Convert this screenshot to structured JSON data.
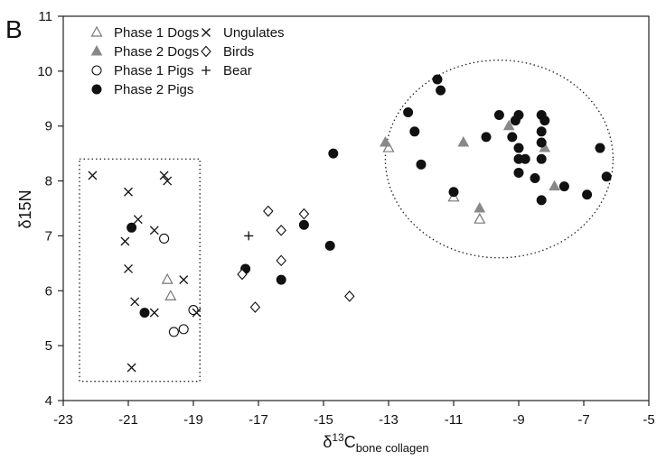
{
  "chart_data": {
    "type": "scatter",
    "panel_label": "B",
    "title": "",
    "xlabel": {
      "main": "δ",
      "sup": "13",
      "rest": "C",
      "sub": "bone collagen"
    },
    "ylabel": "δ15N",
    "xlim": [
      -23,
      -5
    ],
    "ylim": [
      4,
      11
    ],
    "xticks": [
      -23,
      -21,
      -19,
      -17,
      -15,
      -13,
      -11,
      -9,
      -7,
      -5
    ],
    "yticks": [
      4,
      5,
      6,
      7,
      8,
      9,
      10,
      11
    ],
    "grid": false,
    "legend_position": "top-left",
    "colors": {
      "phase2_dogs": "#888888",
      "phase1_dogs": "#777777",
      "black": "#111111"
    },
    "series": [
      {
        "name": "Phase 1 Dogs",
        "marker": "triangle-open",
        "points": [
          [
            -19.8,
            6.2
          ],
          [
            -19.7,
            5.9
          ],
          [
            -13.0,
            8.6
          ],
          [
            -11.0,
            7.7
          ],
          [
            -10.2,
            7.3
          ]
        ]
      },
      {
        "name": "Phase 2 Dogs",
        "marker": "triangle-filled",
        "points": [
          [
            -13.1,
            8.7
          ],
          [
            -10.7,
            8.7
          ],
          [
            -10.2,
            7.5
          ],
          [
            -9.3,
            9.0
          ],
          [
            -8.2,
            8.6
          ],
          [
            -7.9,
            7.9
          ]
        ]
      },
      {
        "name": "Phase 1 Pigs",
        "marker": "circle-open",
        "points": [
          [
            -19.9,
            6.95
          ],
          [
            -19.0,
            5.65
          ],
          [
            -19.3,
            5.3
          ],
          [
            -19.6,
            5.25
          ]
        ]
      },
      {
        "name": "Phase 2 Pigs",
        "marker": "circle-filled",
        "points": [
          [
            -20.9,
            7.15
          ],
          [
            -20.5,
            5.6
          ],
          [
            -17.4,
            6.4
          ],
          [
            -16.3,
            6.2
          ],
          [
            -15.6,
            7.2
          ],
          [
            -14.8,
            6.82
          ],
          [
            -14.7,
            8.5
          ],
          [
            -12.4,
            9.25
          ],
          [
            -12.2,
            8.9
          ],
          [
            -12.0,
            8.3
          ],
          [
            -11.5,
            9.85
          ],
          [
            -11.4,
            9.65
          ],
          [
            -11.0,
            7.8
          ],
          [
            -10.0,
            8.8
          ],
          [
            -9.6,
            9.2
          ],
          [
            -9.2,
            8.8
          ],
          [
            -9.1,
            9.1
          ],
          [
            -9.0,
            9.2
          ],
          [
            -9.0,
            8.6
          ],
          [
            -9.0,
            8.4
          ],
          [
            -9.0,
            8.15
          ],
          [
            -8.8,
            8.4
          ],
          [
            -8.5,
            8.05
          ],
          [
            -8.3,
            9.2
          ],
          [
            -8.3,
            8.9
          ],
          [
            -8.3,
            8.7
          ],
          [
            -8.3,
            8.4
          ],
          [
            -8.2,
            9.1
          ],
          [
            -8.3,
            7.65
          ],
          [
            -7.6,
            7.9
          ],
          [
            -6.9,
            7.75
          ],
          [
            -6.5,
            8.6
          ],
          [
            -6.3,
            8.08
          ]
        ]
      },
      {
        "name": "Ungulates",
        "marker": "x",
        "points": [
          [
            -22.1,
            8.1
          ],
          [
            -21.0,
            7.8
          ],
          [
            -21.1,
            6.9
          ],
          [
            -21.0,
            6.4
          ],
          [
            -20.8,
            5.8
          ],
          [
            -20.7,
            7.3
          ],
          [
            -20.2,
            5.6
          ],
          [
            -20.2,
            7.1
          ],
          [
            -19.9,
            8.1
          ],
          [
            -19.8,
            8.0
          ],
          [
            -19.3,
            6.2
          ],
          [
            -18.9,
            5.6
          ],
          [
            -20.9,
            4.6
          ]
        ]
      },
      {
        "name": "Birds",
        "marker": "diamond-open",
        "points": [
          [
            -17.5,
            6.3
          ],
          [
            -17.1,
            5.7
          ],
          [
            -16.7,
            7.45
          ],
          [
            -16.3,
            7.1
          ],
          [
            -16.3,
            6.55
          ],
          [
            -15.6,
            7.4
          ],
          [
            -14.2,
            5.9
          ]
        ]
      },
      {
        "name": "Bear",
        "marker": "plus",
        "points": [
          [
            -17.3,
            7.0
          ]
        ]
      }
    ],
    "annotations": [
      {
        "shape": "dotted-rectangle",
        "x": [
          -22.5,
          -18.8
        ],
        "y": [
          4.35,
          8.4
        ]
      },
      {
        "shape": "dotted-ellipse",
        "cx": -9.6,
        "cy": 8.4,
        "rx": 3.5,
        "ry": 1.8
      }
    ]
  }
}
